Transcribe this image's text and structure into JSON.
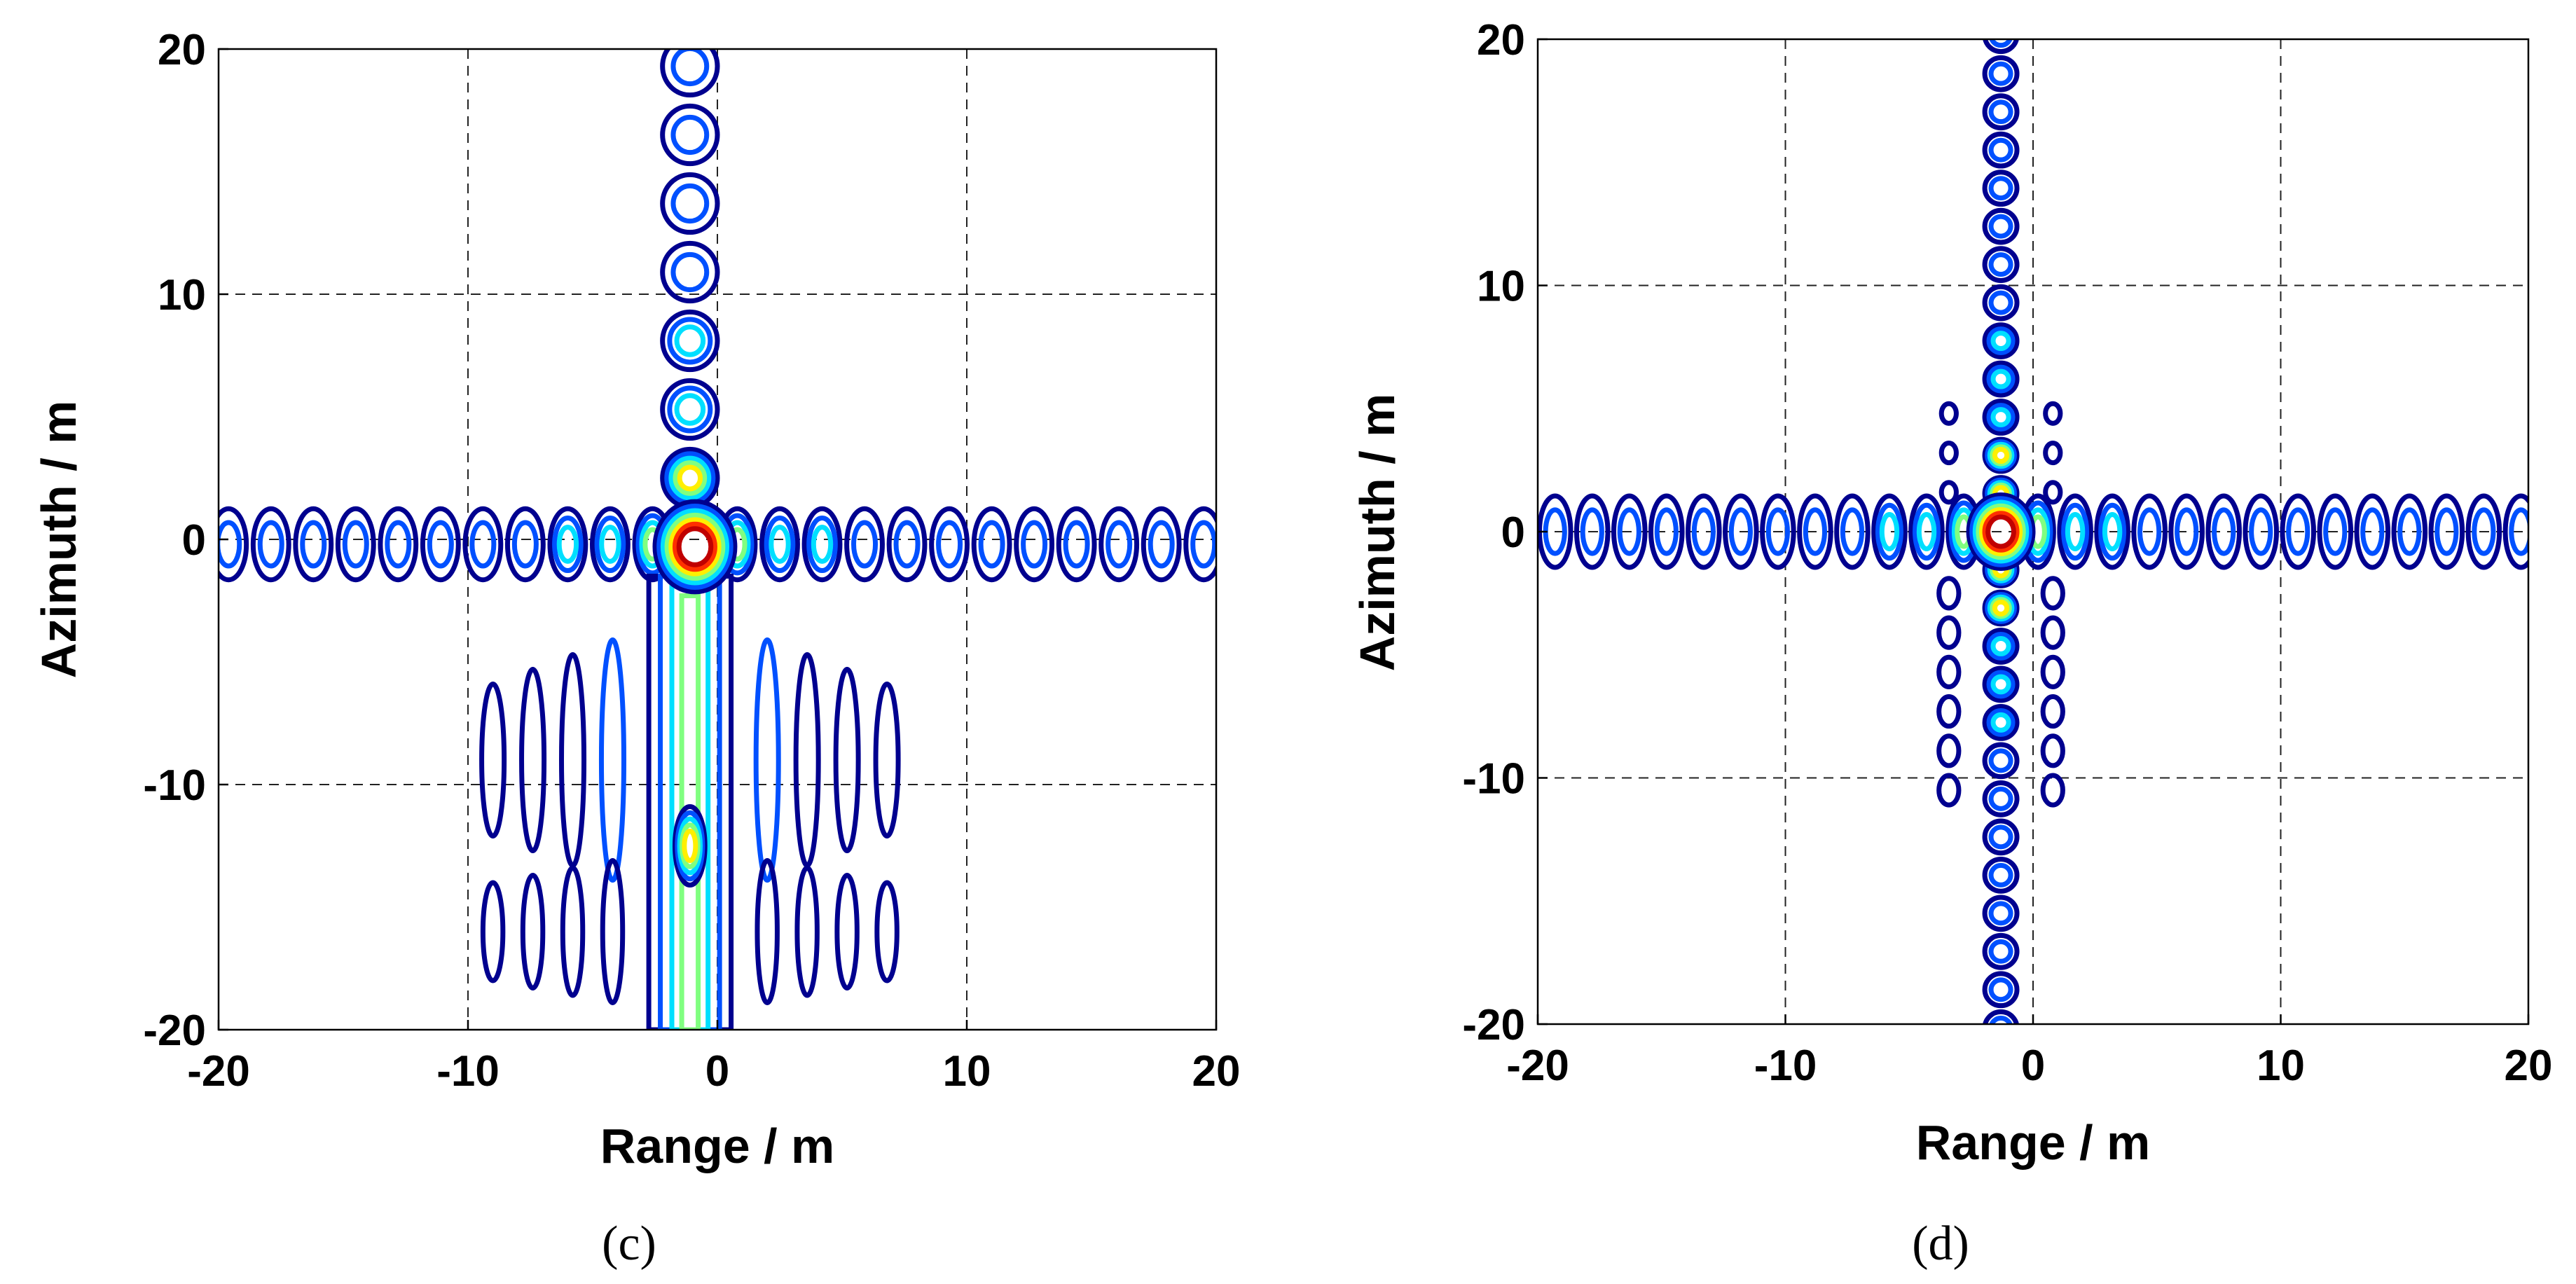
{
  "figure": {
    "panels": [
      "c",
      "d"
    ]
  },
  "chart_data": [
    {
      "panel_id": "c",
      "type": "heatmap",
      "subtype": "contour",
      "caption": "(c)",
      "xlabel": "Range / m",
      "ylabel": "Azimuth / m",
      "xlim": [
        -20,
        20
      ],
      "ylim": [
        -20,
        20
      ],
      "xticks": [
        -20,
        -10,
        0,
        10,
        20
      ],
      "yticks": [
        -20,
        -10,
        0,
        10,
        20
      ],
      "grid": true,
      "colormap": "jet",
      "peak": {
        "x": -0.9,
        "y": -0.3,
        "level": "max"
      },
      "range_sidelobes": {
        "axis_y": -0.2,
        "spacing": 1.7,
        "extent": [
          -20,
          20
        ]
      },
      "azimuth_sidelobes": {
        "axis_x": -1.1,
        "spacing": 2.8,
        "extent": [
          -20,
          20
        ],
        "width_above": 2.2,
        "width_below": 3.3,
        "below_smeared": true
      },
      "contour_colors": [
        "#00008f",
        "#0050ff",
        "#00dfff",
        "#80ff80",
        "#ffef00",
        "#ff3000",
        "#c00000"
      ]
    },
    {
      "panel_id": "d",
      "type": "heatmap",
      "subtype": "contour",
      "caption": "(d)",
      "xlabel": "Range / m",
      "ylabel": "Azimuth / m",
      "xlim": [
        -20,
        20
      ],
      "ylim": [
        -20,
        20
      ],
      "xticks": [
        -20,
        -10,
        0,
        10,
        20
      ],
      "yticks": [
        -20,
        -10,
        0,
        10,
        20
      ],
      "grid": true,
      "colormap": "jet",
      "peak": {
        "x": -1.3,
        "y": 0.0,
        "level": "max"
      },
      "range_sidelobes": {
        "axis_y": 0.0,
        "spacing": 1.5,
        "extent": [
          -20,
          20
        ]
      },
      "azimuth_sidelobes": {
        "axis_x": -1.3,
        "spacing": 1.55,
        "extent": [
          -20,
          20
        ],
        "width_above": 1.3,
        "width_below": 1.3,
        "below_smeared": false
      },
      "contour_colors": [
        "#00008f",
        "#0050ff",
        "#00dfff",
        "#80ff80",
        "#ffef00",
        "#ff3000",
        "#c00000"
      ]
    }
  ]
}
